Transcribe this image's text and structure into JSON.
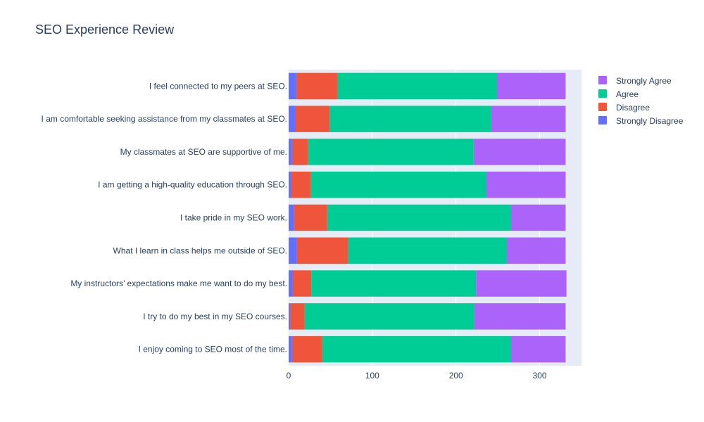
{
  "chart_data": {
    "type": "bar",
    "orientation": "horizontal",
    "barmode": "stack",
    "title": "SEO Experience Review",
    "xlim": [
      0,
      350
    ],
    "xticks": [
      0,
      100,
      200,
      300
    ],
    "grid": true,
    "legend_position": "top-right",
    "categories": [
      "I feel connected to my peers at SEO.",
      "I am comfortable seeking assistance from my classmates at SEO.",
      "My classmates at SEO are supportive of me.",
      "I am getting a high-quality education through SEO.",
      "I take pride in my SEO work.",
      "What I learn in class helps me outside of SEO.",
      "My instructors’ expectations make me want to do my best.",
      "I try to do my best in my SEO courses.",
      "I enjoy coming to SEO most of the time."
    ],
    "series": [
      {
        "name": "Strongly Disagree",
        "color": "#636efa",
        "values": [
          9,
          8,
          4,
          3,
          6,
          10,
          5,
          2,
          4
        ]
      },
      {
        "name": "Disagree",
        "color": "#ef553b",
        "values": [
          49,
          41,
          19,
          23,
          40,
          61,
          22,
          17,
          36
        ]
      },
      {
        "name": "Agree",
        "color": "#00cc96",
        "values": [
          191,
          193,
          198,
          210,
          219,
          189,
          197,
          203,
          225
        ]
      },
      {
        "name": "Strongly Agree",
        "color": "#ab63fa",
        "values": [
          82,
          89,
          110,
          95,
          66,
          71,
          108,
          109,
          66
        ]
      }
    ],
    "legend_order": [
      "Strongly Agree",
      "Agree",
      "Disagree",
      "Strongly Disagree"
    ]
  }
}
